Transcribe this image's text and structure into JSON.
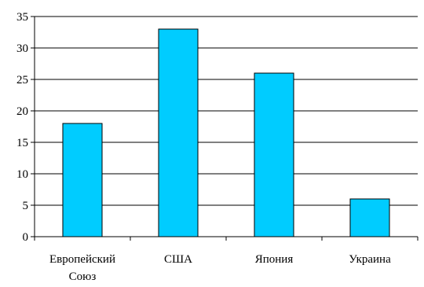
{
  "chart_data": {
    "type": "bar",
    "categories": [
      [
        "Европейский",
        "Союз"
      ],
      [
        "США"
      ],
      [
        "Япония"
      ],
      [
        "Украина"
      ]
    ],
    "values": [
      18,
      33,
      26,
      6
    ],
    "ylim": [
      0,
      35
    ],
    "yticks": [
      "0",
      "5",
      "10",
      "15",
      "20",
      "25",
      "30",
      "35"
    ],
    "grid": true,
    "legend": "none",
    "colors": {
      "bar": "#00ccff",
      "bar_stroke": "#000000",
      "grid": "#000000"
    }
  }
}
